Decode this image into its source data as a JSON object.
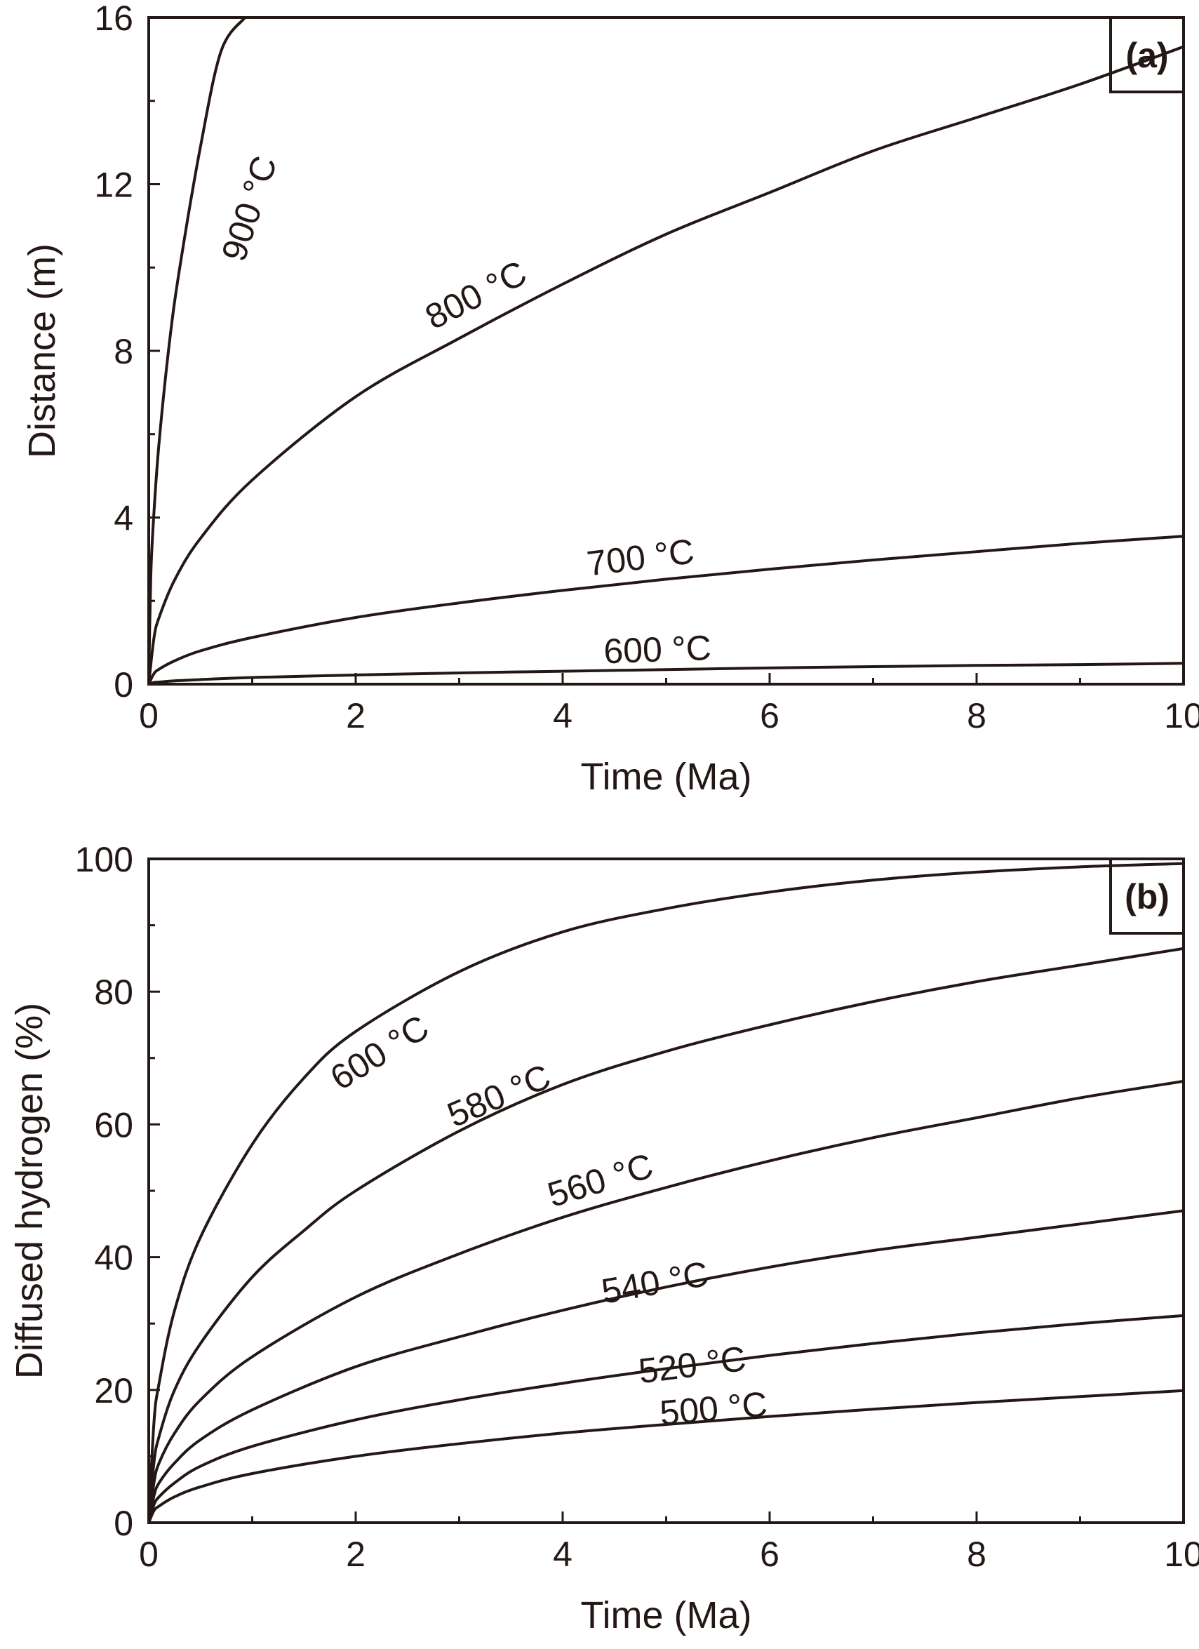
{
  "chart_data": [
    {
      "type": "line",
      "panel": "(a)",
      "xlabel": "Time (Ma)",
      "ylabel": "Distance (m)",
      "xlim": [
        0,
        10
      ],
      "ylim": [
        0,
        16
      ],
      "xticks": [
        0,
        2,
        4,
        6,
        8,
        10
      ],
      "yticks": [
        0,
        4,
        8,
        12,
        16
      ],
      "xticks_minor": [
        1,
        3,
        5,
        7,
        9
      ],
      "yticks_minor": [
        2,
        6,
        10,
        14
      ],
      "series": [
        {
          "name": "900 °C",
          "label": "900 °C",
          "x": [
            0,
            0.02,
            0.05,
            0.1,
            0.2,
            0.3,
            0.5,
            0.7,
            0.93
          ],
          "y": [
            0,
            2.6,
            4.1,
            5.8,
            8.2,
            10.0,
            12.9,
            15.2,
            16.0
          ]
        },
        {
          "name": "800 °C",
          "label": "800 °C",
          "x": [
            0,
            0.05,
            0.1,
            0.25,
            0.5,
            1,
            2,
            3,
            4,
            5,
            6,
            7,
            8,
            9,
            10
          ],
          "y": [
            0,
            1.1,
            1.6,
            2.5,
            3.5,
            4.9,
            6.9,
            8.3,
            9.6,
            10.8,
            11.8,
            12.8,
            13.6,
            14.4,
            15.3
          ]
        },
        {
          "name": "700 °C",
          "label": "700 °C",
          "x": [
            0,
            0.05,
            0.1,
            0.25,
            0.5,
            1,
            2,
            3,
            4,
            5,
            6,
            7,
            8,
            9,
            10
          ],
          "y": [
            0,
            0.25,
            0.36,
            0.56,
            0.8,
            1.12,
            1.6,
            1.95,
            2.25,
            2.52,
            2.76,
            2.98,
            3.18,
            3.38,
            3.55
          ]
        },
        {
          "name": "600 °C",
          "label": "600 °C",
          "x": [
            0,
            0.05,
            0.1,
            0.25,
            0.5,
            1,
            2,
            3,
            4,
            5,
            6,
            7,
            8,
            9,
            10
          ],
          "y": [
            0,
            0.04,
            0.05,
            0.08,
            0.11,
            0.16,
            0.22,
            0.27,
            0.31,
            0.35,
            0.39,
            0.42,
            0.45,
            0.47,
            0.5
          ]
        }
      ]
    },
    {
      "type": "line",
      "panel": "(b)",
      "xlabel": "Time (Ma)",
      "ylabel": "Diffused hydrogen (%)",
      "xlim": [
        0,
        10
      ],
      "ylim": [
        0,
        100
      ],
      "xticks": [
        0,
        2,
        4,
        6,
        8,
        10
      ],
      "yticks": [
        0,
        20,
        40,
        60,
        80,
        100
      ],
      "xticks_minor": [
        1,
        3,
        5,
        7,
        9
      ],
      "yticks_minor": [
        10,
        30,
        50,
        70,
        90
      ],
      "series": [
        {
          "name": "600 °C",
          "label": "600 °C",
          "x": [
            0,
            0.05,
            0.1,
            0.25,
            0.5,
            1,
            1.5,
            2,
            3,
            4,
            5,
            6,
            7,
            8,
            9,
            10
          ],
          "y": [
            0,
            15,
            21,
            32,
            43,
            57,
            67,
            74,
            83,
            89,
            92.5,
            95,
            96.8,
            98,
            98.8,
            99.3
          ]
        },
        {
          "name": "580 °C",
          "label": "580 °C",
          "x": [
            0,
            0.05,
            0.1,
            0.25,
            0.5,
            1,
            1.5,
            2,
            3,
            4,
            5,
            6,
            7,
            8,
            9,
            10
          ],
          "y": [
            0,
            9,
            13,
            20,
            27,
            37,
            44,
            50,
            59,
            66,
            71,
            75,
            78.5,
            81.5,
            84,
            86.5
          ]
        },
        {
          "name": "560 °C",
          "label": "560 °C",
          "x": [
            0,
            0.05,
            0.1,
            0.25,
            0.5,
            1,
            2,
            3,
            4,
            5,
            6,
            7,
            8,
            9,
            10
          ],
          "y": [
            0,
            6,
            9,
            13.5,
            18.5,
            25,
            34,
            40.5,
            46,
            50.5,
            54.5,
            58,
            61,
            64,
            66.5
          ]
        },
        {
          "name": "540 °C",
          "label": "540 °C",
          "x": [
            0,
            0.05,
            0.1,
            0.25,
            0.5,
            1,
            2,
            3,
            4,
            5,
            6,
            7,
            8,
            9,
            10
          ],
          "y": [
            0,
            4,
            6,
            9,
            12.5,
            17,
            23.5,
            28,
            32,
            35.5,
            38.5,
            41,
            43,
            45,
            47
          ]
        },
        {
          "name": "520 °C",
          "label": "520 °C",
          "x": [
            0,
            0.05,
            0.1,
            0.25,
            0.5,
            1,
            2,
            3,
            4,
            5,
            6,
            7,
            8,
            9,
            10
          ],
          "y": [
            0,
            2.7,
            3.9,
            6,
            8.5,
            11.5,
            15.5,
            18.5,
            21,
            23.2,
            25.2,
            27,
            28.6,
            30,
            31.2
          ]
        },
        {
          "name": "500 °C",
          "label": "500 °C",
          "x": [
            0,
            0.05,
            0.1,
            0.25,
            0.5,
            1,
            2,
            3,
            4,
            5,
            6,
            7,
            8,
            9,
            10
          ],
          "y": [
            0,
            1.8,
            2.5,
            3.9,
            5.4,
            7.4,
            10,
            11.9,
            13.5,
            14.8,
            16,
            17.1,
            18.1,
            19,
            19.9
          ]
        }
      ]
    }
  ]
}
